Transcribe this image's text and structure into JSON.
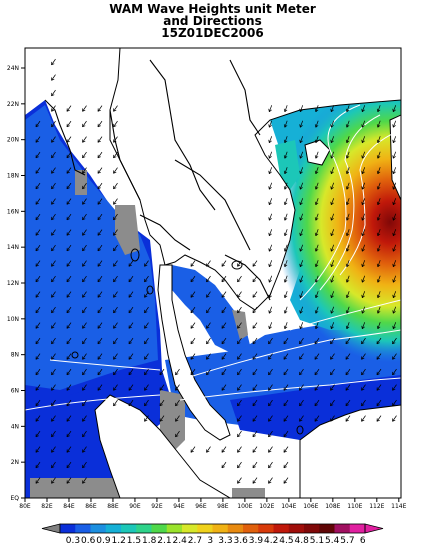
{
  "title": {
    "line1": "WAM Wave Heights unit Meter",
    "line2": "and Directions",
    "line3": "15Z01DEC2006"
  },
  "axes": {
    "lon_labels": [
      "80E",
      "82E",
      "84E",
      "86E",
      "88E",
      "90E",
      "92E",
      "94E",
      "96E",
      "98E",
      "100E",
      "102E",
      "104E",
      "106E",
      "108E",
      "110E",
      "112E",
      "114E"
    ],
    "lat_labels": [
      "EQ",
      "2N",
      "4N",
      "6N",
      "8N",
      "10N",
      "12N",
      "14N",
      "16N",
      "18N",
      "20N",
      "22N",
      "24N"
    ]
  },
  "colorbar": {
    "labels": [
      "0.3",
      "0.6",
      "0.9",
      "1.2",
      "1.5",
      "1.8",
      "2.1",
      "2.4",
      "2.7",
      "3",
      "3.3",
      "3.6",
      "3.9",
      "4.2",
      "4.5",
      "4.8",
      "5.1",
      "5.4",
      "5.7",
      "6"
    ],
    "colors": [
      "#0a2fd9",
      "#1a5fe6",
      "#1c8fe0",
      "#16b0d6",
      "#1cc7b8",
      "#2ed38a",
      "#4fd84a",
      "#9ae32c",
      "#d7e82a",
      "#f0d21c",
      "#f0b214",
      "#e88a10",
      "#e0600c",
      "#d83a0a",
      "#c0180a",
      "#a00e0a",
      "#800808",
      "#600606",
      "#a01060",
      "#e020a0"
    ]
  },
  "colors": {
    "land": "#ffffff",
    "missing": "#8c8c8c",
    "coast": "#000000"
  }
}
